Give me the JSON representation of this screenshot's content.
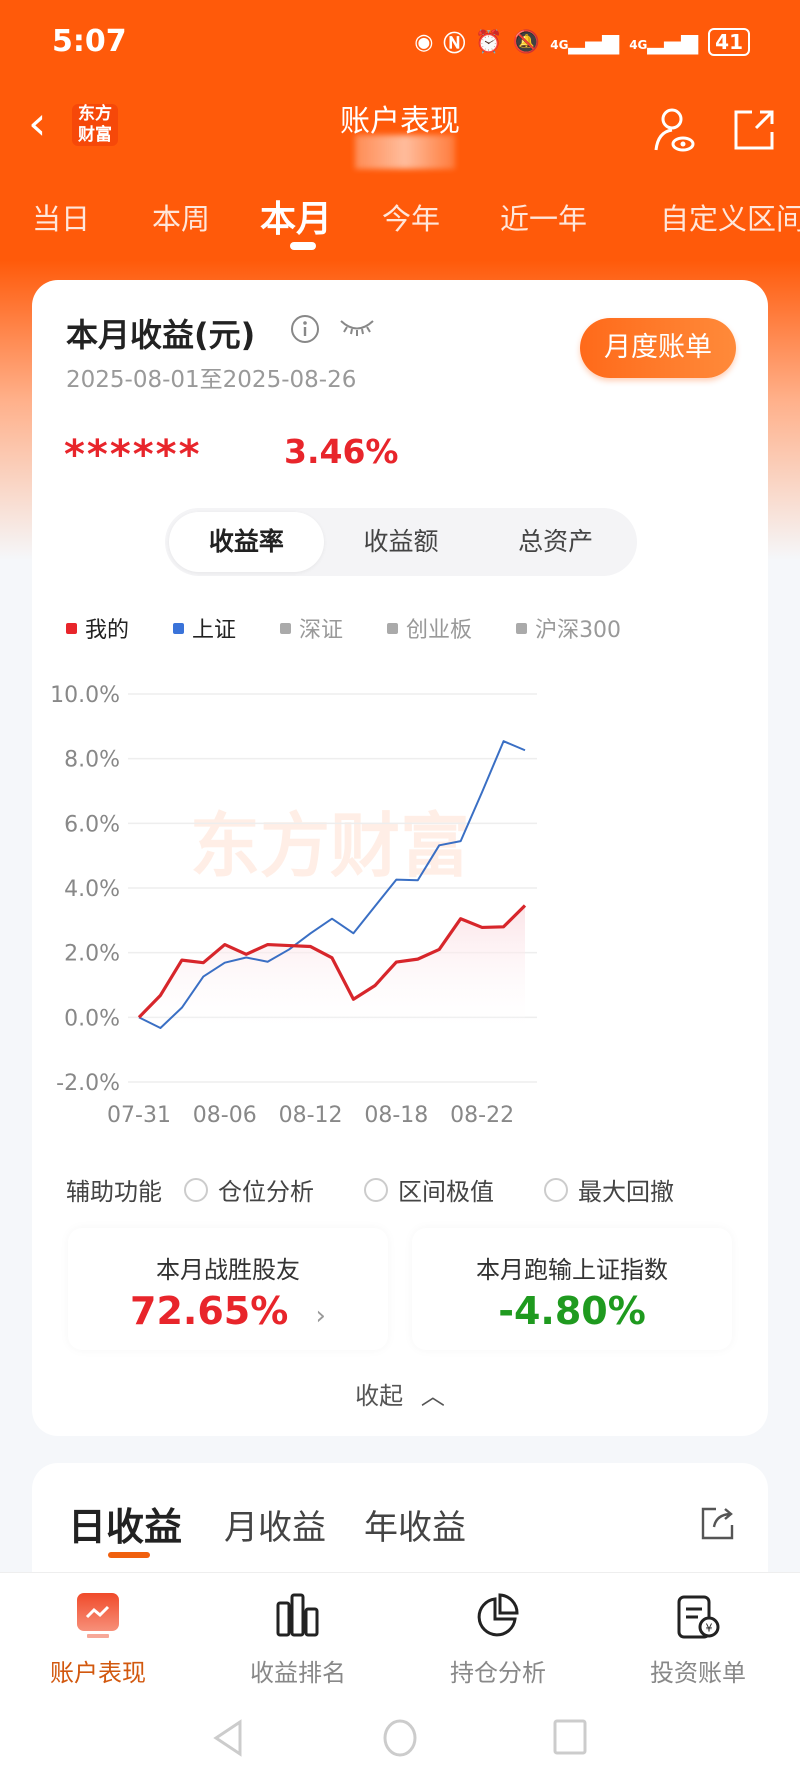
{
  "status": {
    "time": "5:07",
    "battery": "41",
    "network": "4G"
  },
  "header": {
    "back_logo": "东方财富",
    "title": "账户表现"
  },
  "period_tabs": [
    {
      "label": "当日"
    },
    {
      "label": "本周"
    },
    {
      "label": "本月",
      "active": true
    },
    {
      "label": "今年"
    },
    {
      "label": "近一年"
    },
    {
      "label": "自定义区间"
    }
  ],
  "summary": {
    "title": "本月收益(元)",
    "date_range": "2025-08-01至2025-08-26",
    "bill_button": "月度账单",
    "amount_masked": "******",
    "return_pct": "3.46%"
  },
  "segments": [
    {
      "label": "收益率",
      "active": true
    },
    {
      "label": "收益额"
    },
    {
      "label": "总资产"
    }
  ],
  "legend": [
    {
      "label": "我的",
      "color": "#e8252b"
    },
    {
      "label": "上证",
      "color": "#3a73d9"
    },
    {
      "label": "深证",
      "color": "#aaaaaa"
    },
    {
      "label": "创业板",
      "color": "#aaaaaa"
    },
    {
      "label": "沪深300",
      "color": "#aaaaaa"
    }
  ],
  "chart_data": {
    "type": "line",
    "x": [
      "07-31",
      "08-01",
      "08-04",
      "08-05",
      "08-06",
      "08-07",
      "08-08",
      "08-11",
      "08-12",
      "08-13",
      "08-14",
      "08-15",
      "08-18",
      "08-19",
      "08-20",
      "08-21",
      "08-22",
      "08-25",
      "08-26"
    ],
    "x_tick_labels": [
      "07-31",
      "08-06",
      "08-12",
      "08-18",
      "08-22"
    ],
    "y_tick_labels": [
      "10.0%",
      "8.0%",
      "6.0%",
      "4.0%",
      "2.0%",
      "0.0%",
      "-2.0%"
    ],
    "ylim": [
      -2,
      10
    ],
    "grid": true,
    "watermark": "东方财富",
    "series": [
      {
        "name": "我的",
        "color": "#d7262b",
        "values": [
          0.0,
          0.68,
          1.77,
          1.69,
          2.25,
          1.95,
          2.25,
          2.22,
          2.19,
          1.84,
          0.56,
          0.98,
          1.71,
          1.8,
          2.1,
          3.05,
          2.78,
          2.8,
          3.46
        ]
      },
      {
        "name": "上证",
        "color": "#3a6fc4",
        "values": [
          0.0,
          -0.33,
          0.3,
          1.26,
          1.69,
          1.85,
          1.72,
          2.1,
          2.6,
          3.05,
          2.6,
          3.43,
          4.26,
          4.24,
          5.32,
          5.45,
          6.97,
          8.54,
          8.26
        ]
      }
    ]
  },
  "aux": {
    "label": "辅助功能",
    "options": [
      {
        "label": "仓位分析"
      },
      {
        "label": "区间极值"
      },
      {
        "label": "最大回撤"
      }
    ]
  },
  "stats": [
    {
      "label": "本月战胜股友",
      "value": "72.65%",
      "color": "#e8252b"
    },
    {
      "label": "本月跑输上证指数",
      "value": "-4.80%",
      "color": "#1f9a1f"
    }
  ],
  "collapse_label": "收起",
  "income_tabs": [
    {
      "label": "日收益",
      "active": true
    },
    {
      "label": "月收益"
    },
    {
      "label": "年收益"
    }
  ],
  "bottom_nav": [
    {
      "label": "账户表现",
      "active": true
    },
    {
      "label": "收益排名"
    },
    {
      "label": "持仓分析"
    },
    {
      "label": "投资账单"
    }
  ],
  "colors": {
    "brand": "#ff5a0a",
    "up": "#e8252b",
    "down": "#1f9a1f"
  }
}
